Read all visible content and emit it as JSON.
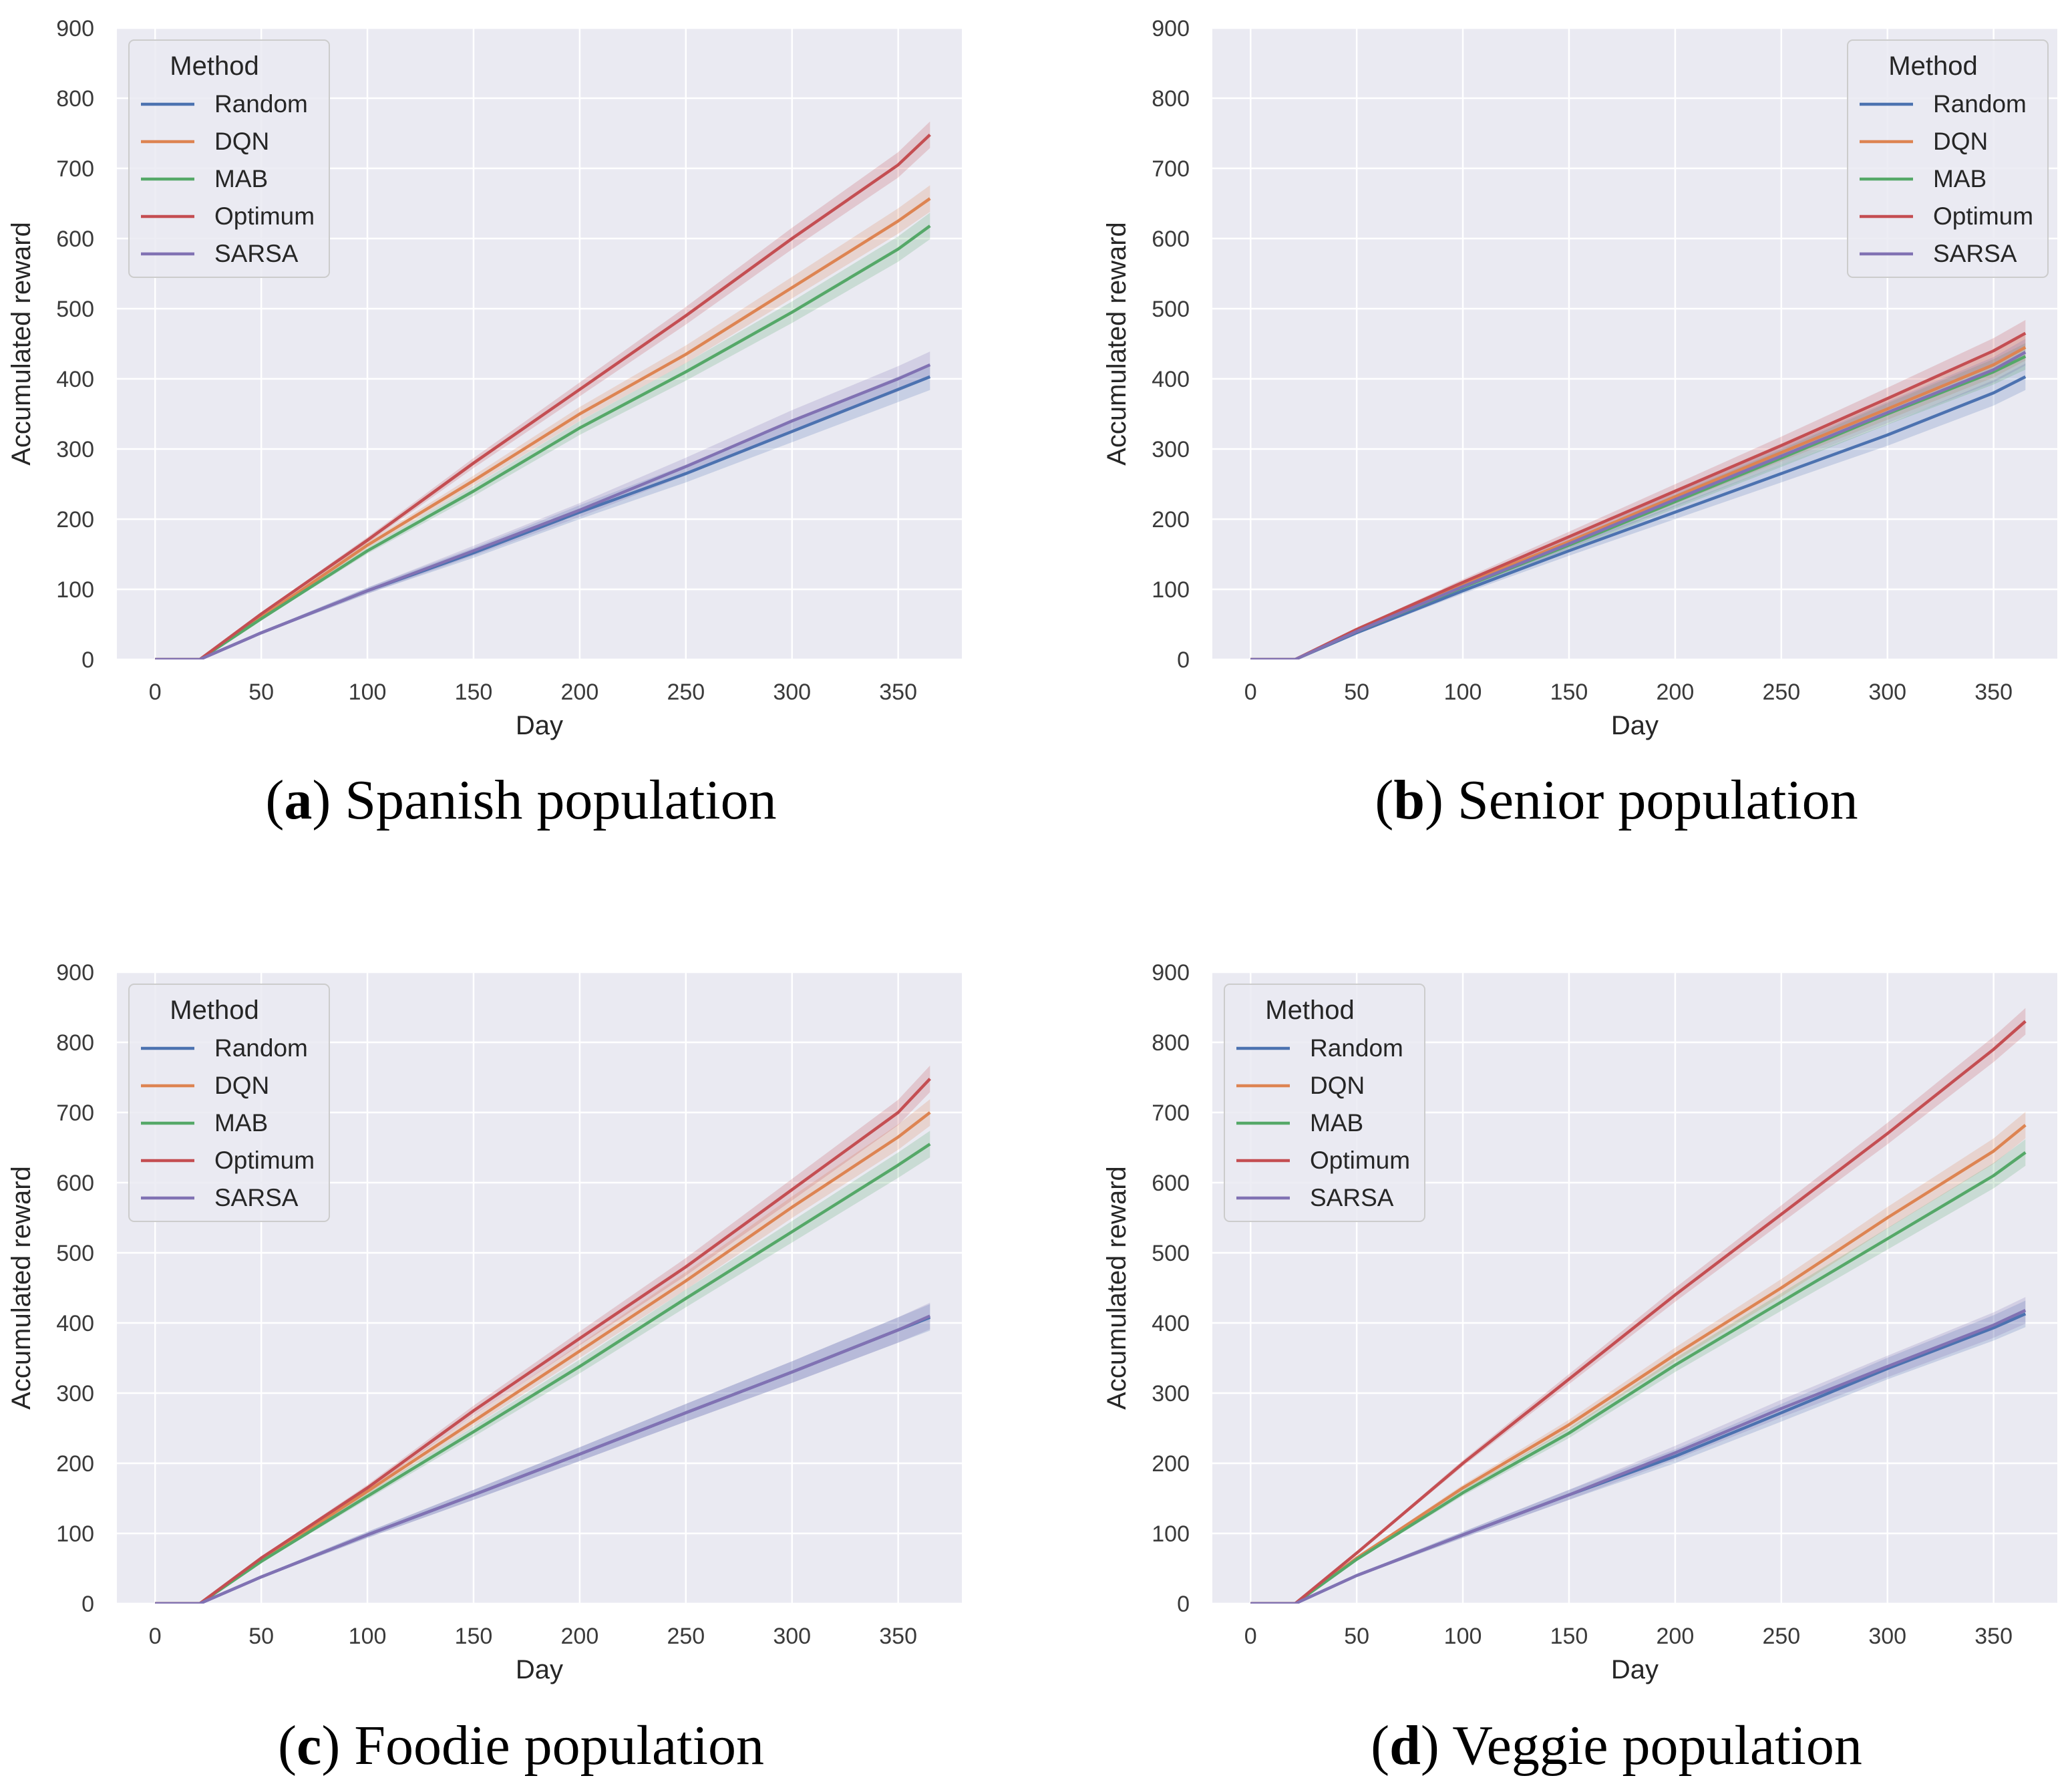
{
  "chart_data": [
    {
      "type": "line",
      "caption_letter": "a",
      "caption_text": "Spanish population",
      "xlabel": "Day",
      "ylabel": "Accumulated reward",
      "xlim": [
        -18,
        380
      ],
      "ylim": [
        0,
        900
      ],
      "xticks": [
        "0",
        "50",
        "100",
        "150",
        "200",
        "250",
        "300",
        "350"
      ],
      "yticks": [
        "0",
        "100",
        "200",
        "300",
        "400",
        "500",
        "600",
        "700",
        "800",
        "900"
      ],
      "legend_title": "Method",
      "legend_position": "top-left",
      "x": [
        0,
        21,
        50,
        100,
        150,
        200,
        250,
        300,
        350,
        365
      ],
      "series": [
        {
          "name": "Random",
          "color": "#4c72b0",
          "values": [
            0,
            0,
            38,
            98,
            152,
            210,
            265,
            325,
            385,
            403
          ]
        },
        {
          "name": "DQN",
          "color": "#dd8452",
          "values": [
            0,
            0,
            60,
            163,
            255,
            350,
            435,
            530,
            625,
            657
          ]
        },
        {
          "name": "MAB",
          "color": "#55a868",
          "values": [
            0,
            0,
            58,
            155,
            240,
            330,
            410,
            495,
            585,
            618
          ]
        },
        {
          "name": "Optimum",
          "color": "#c44e52",
          "values": [
            0,
            0,
            65,
            170,
            280,
            385,
            490,
            600,
            705,
            748
          ]
        },
        {
          "name": "SARSA",
          "color": "#8172b3",
          "values": [
            0,
            0,
            38,
            98,
            155,
            213,
            275,
            340,
            400,
            420
          ]
        }
      ]
    },
    {
      "type": "line",
      "caption_letter": "b",
      "caption_text": "Senior population",
      "xlabel": "Day",
      "ylabel": "Accumulated reward",
      "xlim": [
        -18,
        380
      ],
      "ylim": [
        0,
        900
      ],
      "xticks": [
        "0",
        "50",
        "100",
        "150",
        "200",
        "250",
        "300",
        "350"
      ],
      "yticks": [
        "0",
        "100",
        "200",
        "300",
        "400",
        "500",
        "600",
        "700",
        "800",
        "900"
      ],
      "legend_title": "Method",
      "legend_position": "top-right",
      "x": [
        0,
        21,
        50,
        100,
        150,
        200,
        250,
        300,
        350,
        365
      ],
      "series": [
        {
          "name": "Random",
          "color": "#4c72b0",
          "values": [
            0,
            0,
            38,
            98,
            155,
            210,
            265,
            320,
            380,
            403
          ]
        },
        {
          "name": "DQN",
          "color": "#dd8452",
          "values": [
            0,
            0,
            42,
            107,
            168,
            232,
            295,
            357,
            420,
            445
          ]
        },
        {
          "name": "MAB",
          "color": "#55a868",
          "values": [
            0,
            0,
            40,
            103,
            163,
            225,
            287,
            350,
            410,
            432
          ]
        },
        {
          "name": "Optimum",
          "color": "#c44e52",
          "values": [
            0,
            0,
            43,
            110,
            175,
            240,
            305,
            372,
            440,
            465
          ]
        },
        {
          "name": "SARSA",
          "color": "#8172b3",
          "values": [
            0,
            0,
            40,
            104,
            165,
            228,
            290,
            352,
            413,
            438
          ]
        }
      ]
    },
    {
      "type": "line",
      "caption_letter": "c",
      "caption_text": "Foodie population",
      "xlabel": "Day",
      "ylabel": "Accumulated reward",
      "xlim": [
        -18,
        380
      ],
      "ylim": [
        0,
        900
      ],
      "xticks": [
        "0",
        "50",
        "100",
        "150",
        "200",
        "250",
        "300",
        "350"
      ],
      "yticks": [
        "0",
        "100",
        "200",
        "300",
        "400",
        "500",
        "600",
        "700",
        "800",
        "900"
      ],
      "legend_title": "Method",
      "legend_position": "top-left",
      "x": [
        0,
        21,
        50,
        100,
        150,
        200,
        250,
        300,
        350,
        365
      ],
      "series": [
        {
          "name": "Random",
          "color": "#4c72b0",
          "values": [
            0,
            0,
            38,
            98,
            155,
            213,
            272,
            330,
            390,
            408
          ]
        },
        {
          "name": "DQN",
          "color": "#dd8452",
          "values": [
            0,
            0,
            62,
            160,
            260,
            360,
            460,
            565,
            665,
            700
          ]
        },
        {
          "name": "MAB",
          "color": "#55a868",
          "values": [
            0,
            0,
            60,
            153,
            245,
            338,
            435,
            530,
            625,
            655
          ]
        },
        {
          "name": "Optimum",
          "color": "#c44e52",
          "values": [
            0,
            0,
            65,
            165,
            275,
            378,
            480,
            590,
            700,
            748
          ]
        },
        {
          "name": "SARSA",
          "color": "#8172b3",
          "values": [
            0,
            0,
            38,
            98,
            155,
            213,
            272,
            330,
            390,
            410
          ]
        }
      ]
    },
    {
      "type": "line",
      "caption_letter": "d",
      "caption_text": "Veggie population",
      "xlabel": "Day",
      "ylabel": "Accumulated reward",
      "xlim": [
        -18,
        380
      ],
      "ylim": [
        0,
        900
      ],
      "xticks": [
        "0",
        "50",
        "100",
        "150",
        "200",
        "250",
        "300",
        "350"
      ],
      "yticks": [
        "0",
        "100",
        "200",
        "300",
        "400",
        "500",
        "600",
        "700",
        "800",
        "900"
      ],
      "legend_title": "Method",
      "legend_position": "top-left",
      "x": [
        0,
        21,
        50,
        100,
        150,
        200,
        250,
        300,
        350,
        365
      ],
      "series": [
        {
          "name": "Random",
          "color": "#4c72b0",
          "values": [
            0,
            0,
            40,
            98,
            155,
            210,
            272,
            335,
            393,
            413
          ]
        },
        {
          "name": "DQN",
          "color": "#dd8452",
          "values": [
            0,
            0,
            65,
            165,
            255,
            355,
            450,
            550,
            645,
            682
          ]
        },
        {
          "name": "MAB",
          "color": "#55a868",
          "values": [
            0,
            0,
            63,
            158,
            243,
            340,
            430,
            520,
            610,
            643
          ]
        },
        {
          "name": "Optimum",
          "color": "#c44e52",
          "values": [
            0,
            0,
            72,
            200,
            320,
            440,
            555,
            670,
            790,
            830
          ]
        },
        {
          "name": "SARSA",
          "color": "#8172b3",
          "values": [
            0,
            0,
            40,
            98,
            155,
            215,
            278,
            338,
            397,
            418
          ]
        }
      ]
    }
  ]
}
